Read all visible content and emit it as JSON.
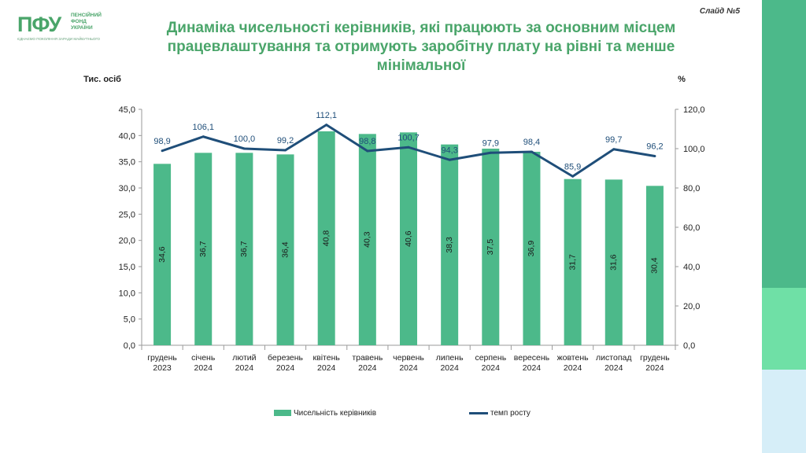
{
  "header": {
    "logo_text": "ПФУ",
    "org_name": [
      "ПЕНСІЙНИЙ",
      "ФОНД",
      "УКРАЇНИ"
    ],
    "slogan": "ЄДНАЄМО ПОКОЛІННЯ ЗАРАДИ МАЙБУТНЬОГО",
    "slide_number": "Слайд №5",
    "title_line1": "Динаміка чисельності керівників, які працюють за основним місцем",
    "title_line2": "працевлаштування та отримують заробітну плату на рівні та менше мінімальної"
  },
  "colors": {
    "brand_green": "#4aa56a",
    "bar": "#4cb98a",
    "line": "#1f4e79",
    "strip_top": "#4cb98a",
    "strip_mid": "#6fe0a6",
    "strip_bottom": "#d6eef8"
  },
  "chart_data": {
    "type": "bar+line",
    "categories": [
      [
        "грудень",
        "2023"
      ],
      [
        "січень",
        "2024"
      ],
      [
        "лютий",
        "2024"
      ],
      [
        "березень",
        "2024"
      ],
      [
        "квітень",
        "2024"
      ],
      [
        "травень",
        "2024"
      ],
      [
        "червень",
        "2024"
      ],
      [
        "липень",
        "2024"
      ],
      [
        "серпень",
        "2024"
      ],
      [
        "вересень",
        "2024"
      ],
      [
        "жовтень",
        "2024"
      ],
      [
        "листопад",
        "2024"
      ],
      [
        "грудень",
        "2024"
      ]
    ],
    "series": [
      {
        "name": "Чисельність керівників",
        "type": "bar",
        "axis": "left",
        "values": [
          34.6,
          36.7,
          36.7,
          36.4,
          40.8,
          40.3,
          40.6,
          38.3,
          37.5,
          36.9,
          31.7,
          31.6,
          30.4
        ],
        "labels": [
          "34,6",
          "36,7",
          "36,7",
          "36,4",
          "40,8",
          "40,3",
          "40,6",
          "38,3",
          "37,5",
          "36,9",
          "31,7",
          "31,6",
          "30,4"
        ]
      },
      {
        "name": "темп росту",
        "type": "line",
        "axis": "right",
        "values": [
          98.9,
          106.1,
          100.0,
          99.2,
          112.1,
          98.8,
          100.7,
          94.3,
          97.9,
          98.4,
          85.9,
          99.7,
          96.2
        ],
        "labels": [
          "98,9",
          "106,1",
          "100,0",
          "99,2",
          "112,1",
          "98,8",
          "100,7",
          "94,3",
          "97,9",
          "98,4",
          "85,9",
          "99,7",
          "96,2"
        ]
      }
    ],
    "left_axis": {
      "label": "Тис. осіб",
      "ylim": [
        0,
        45
      ],
      "ticks": [
        "0,0",
        "5,0",
        "10,0",
        "15,0",
        "20,0",
        "25,0",
        "30,0",
        "35,0",
        "40,0",
        "45,0"
      ]
    },
    "right_axis": {
      "label": "%",
      "ylim": [
        0,
        120
      ],
      "ticks": [
        "0,0",
        "20,0",
        "40,0",
        "60,0",
        "80,0",
        "100,0",
        "120,0"
      ]
    },
    "grid": false,
    "legend_position": "bottom"
  }
}
